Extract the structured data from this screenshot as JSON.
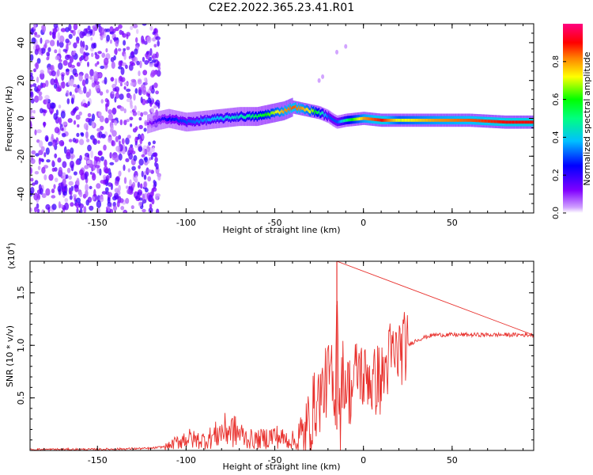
{
  "title": "C2E2.2022.365.23.41.R01",
  "chart_data": [
    {
      "type": "heatmap",
      "xlabel": "Height of straight line (km)",
      "ylabel": "Frequency (Hz)",
      "xlim": [
        -188,
        96
      ],
      "ylim": [
        -50,
        50
      ],
      "x_ticks": [
        -150,
        -100,
        -50,
        0,
        50
      ],
      "y_ticks": [
        -40,
        -20,
        0,
        20,
        40
      ],
      "colorbar": {
        "label": "Normalized spectral amplitude",
        "range": [
          0,
          1
        ],
        "ticks": [
          "0.0",
          "0.2",
          "0.4",
          "0.6",
          "0.8"
        ],
        "colors": [
          "#ffffff",
          "#c080ff",
          "#8000ff",
          "#0000ff",
          "#00ffff",
          "#00ff00",
          "#ffff00",
          "#ff8000",
          "#ff0000",
          "#ff0080"
        ]
      },
      "ridge": {
        "x": [
          -122,
          -115,
          -110,
          -100,
          -90,
          -80,
          -70,
          -60,
          -55,
          -50,
          -45,
          -40,
          -35,
          -30,
          -25,
          -20,
          -17,
          -15,
          -10,
          0,
          10,
          20,
          40,
          60,
          80,
          96
        ],
        "frequency": [
          -3,
          -1,
          0,
          -2,
          -1,
          0,
          1,
          1,
          2,
          3,
          4,
          6,
          5,
          4,
          3,
          1,
          -1,
          -2,
          -1,
          0,
          -1,
          -1,
          -1,
          -1,
          -2,
          -2
        ],
        "amplitude": [
          0.1,
          0.2,
          0.25,
          0.3,
          0.35,
          0.4,
          0.45,
          0.55,
          0.6,
          0.7,
          0.8,
          0.85,
          0.8,
          0.7,
          0.5,
          0.3,
          0.3,
          0.3,
          0.5,
          0.8,
          0.9,
          0.7,
          0.8,
          0.85,
          0.9,
          0.9
        ]
      },
      "noise_region": {
        "x_range": [
          -188,
          -115
        ],
        "frequency_range": [
          -50,
          50
        ],
        "amplitude_range": [
          0.02,
          0.2
        ]
      }
    },
    {
      "type": "line",
      "xlabel": "Height of straight line (km)",
      "ylabel": "SNR (10 * v/v)",
      "y_multiplier": "(x10",
      "y_multiplier_exponent": "4",
      "y_multiplier_close": ")",
      "xlim": [
        -188,
        96
      ],
      "ylim": [
        0,
        1.8
      ],
      "x_ticks": [
        -150,
        -100,
        -50,
        0,
        50
      ],
      "y_ticks": [
        "0.5",
        "1.0",
        "1.5"
      ],
      "line_color": "#e8302c",
      "series": [
        {
          "x": [
            -188,
            -150,
            -120,
            -110,
            -105,
            -100,
            -95,
            -90,
            -85,
            -80,
            -75,
            -70,
            -65,
            -60,
            -55,
            -50,
            -45,
            -40,
            -37,
            -35,
            -32,
            -30,
            -27,
            -25,
            -22,
            -20,
            -18,
            -16,
            -15,
            -14,
            -13,
            -12,
            -10,
            -7,
            -5,
            -2,
            0,
            3,
            5,
            8,
            10,
            13,
            15,
            18,
            20,
            25,
            30,
            35,
            40,
            60,
            80,
            96
          ],
          "y": [
            0.01,
            0.01,
            0.02,
            0.04,
            0.08,
            0.12,
            0.1,
            0.1,
            0.13,
            0.18,
            0.2,
            0.16,
            0.11,
            0.1,
            0.12,
            0.14,
            0.11,
            0.1,
            0.06,
            0.08,
            0.18,
            0.3,
            0.45,
            0.5,
            0.6,
            0.7,
            0.7,
            0.25,
            1.8,
            0.6,
            0.3,
            0.75,
            0.65,
            0.55,
            0.7,
            0.8,
            0.65,
            0.75,
            0.6,
            0.7,
            0.65,
            0.8,
            0.9,
            0.9,
            0.95,
            1.0,
            1.05,
            1.08,
            1.1,
            1.1,
            1.1,
            1.1
          ]
        }
      ]
    }
  ]
}
